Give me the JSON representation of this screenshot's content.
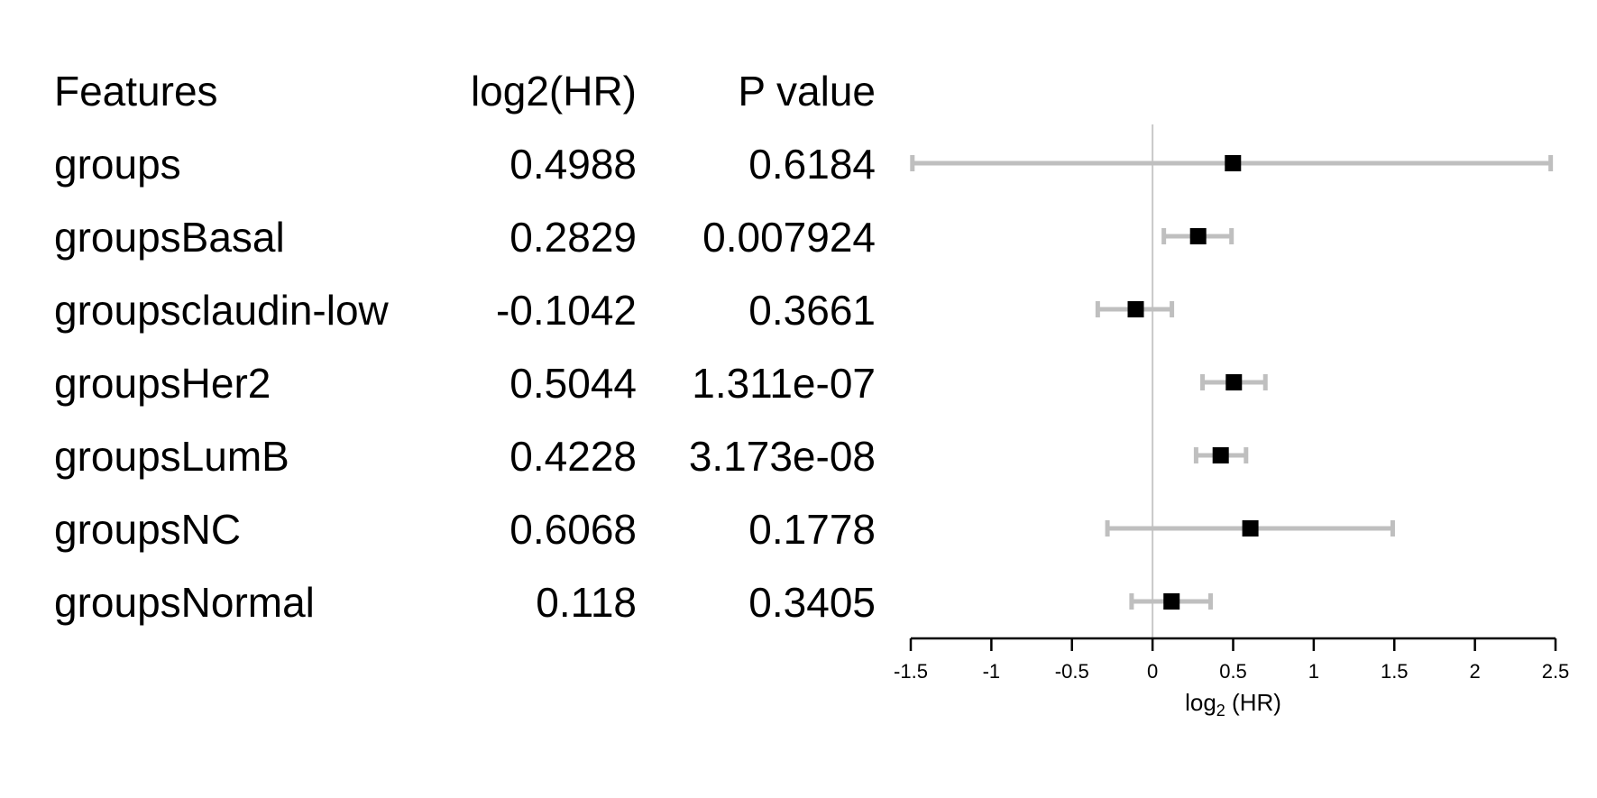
{
  "chart_data": {
    "type": "forest",
    "columns": [
      "Features",
      "log2(HR)",
      "P value"
    ],
    "rows": [
      {
        "feature": "groups",
        "log2hr": "0.4988",
        "p": "0.6184",
        "estimate": 0.4988,
        "ci_low": -1.49,
        "ci_high": 2.47
      },
      {
        "feature": "groupsBasal",
        "log2hr": "0.2829",
        "p": "0.007924",
        "estimate": 0.2829,
        "ci_low": 0.07,
        "ci_high": 0.49
      },
      {
        "feature": "groupsclaudin-low",
        "log2hr": "-0.1042",
        "p": "0.3661",
        "estimate": -0.1042,
        "ci_low": -0.34,
        "ci_high": 0.12
      },
      {
        "feature": "groupsHer2",
        "log2hr": "0.5044",
        "p": "1.311e-07",
        "estimate": 0.5044,
        "ci_low": 0.31,
        "ci_high": 0.7
      },
      {
        "feature": "groupsLumB",
        "log2hr": "0.4228",
        "p": "3.173e-08",
        "estimate": 0.4228,
        "ci_low": 0.27,
        "ci_high": 0.58
      },
      {
        "feature": "groupsNC",
        "log2hr": "0.6068",
        "p": "0.1778",
        "estimate": 0.6068,
        "ci_low": -0.28,
        "ci_high": 1.49
      },
      {
        "feature": "groupsNormal",
        "log2hr": "0.118",
        "p": "0.3405",
        "estimate": 0.118,
        "ci_low": -0.13,
        "ci_high": 0.36
      }
    ],
    "x_ticks": [
      "-1.5",
      "-1",
      "-0.5",
      "0",
      "0.5",
      "1",
      "1.5",
      "2",
      "2.5"
    ],
    "xlim": [
      -1.5,
      2.5
    ],
    "reference_line": 0,
    "xlabel_base": "log",
    "xlabel_sub": "2",
    "xlabel_rest": " (HR)",
    "colors": {
      "ci": "#bfbfbf",
      "point": "#000000",
      "ref": "#c8c8c8",
      "axis": "#000000"
    }
  }
}
